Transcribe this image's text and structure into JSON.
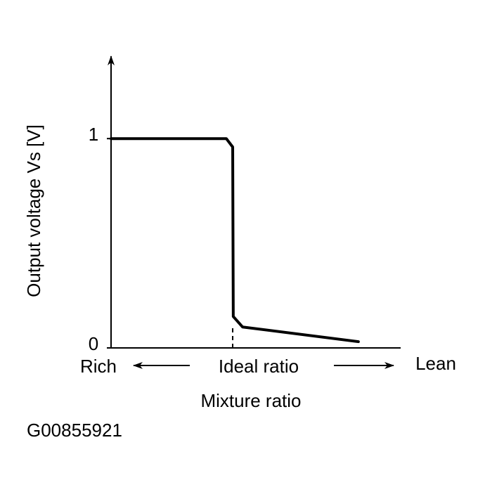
{
  "chart_data": {
    "type": "line",
    "y_label": "Output voltage Vs [V]",
    "x_label": "Mixture ratio",
    "annotations": [
      "Rich",
      "Ideal ratio",
      "Lean"
    ],
    "x": [
      0,
      3.98,
      4.2,
      4.22,
      4.54,
      8.54
    ],
    "series": [
      {
        "color": "#000000",
        "values": [
          1,
          1,
          0.96,
          0.15,
          0.1,
          0.03
        ]
      }
    ],
    "ideal_x": 4.2,
    "xlim": [
      0,
      10
    ],
    "ylim": [
      0,
      1.37
    ],
    "yticks": [
      0,
      1
    ]
  },
  "figure_id": "G00855921"
}
